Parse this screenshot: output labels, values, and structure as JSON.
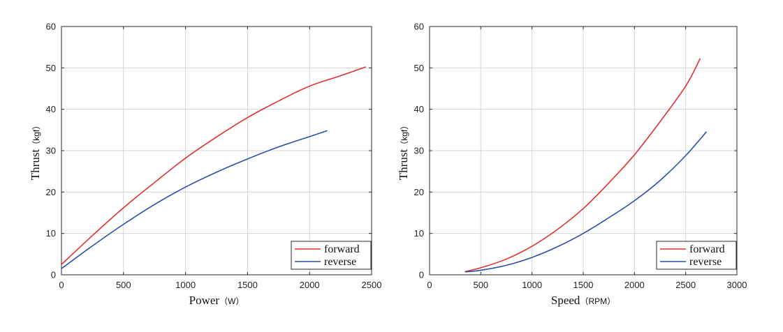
{
  "chart_data": [
    {
      "type": "line",
      "xlabel": "Power",
      "xunit": "（W）",
      "ylabel": "Thrust",
      "yunit": "（kgf）",
      "xlim": [
        0,
        2500
      ],
      "ylim": [
        0,
        60
      ],
      "xticks": [
        0,
        500,
        1000,
        1500,
        2000,
        2500
      ],
      "yticks": [
        0,
        10,
        20,
        30,
        40,
        50,
        60
      ],
      "grid": true,
      "legend": "bottom-right",
      "series": [
        {
          "name": "forward",
          "color": "#e03030",
          "x": [
            0,
            250,
            500,
            750,
            1000,
            1250,
            1500,
            1750,
            2000,
            2250,
            2450
          ],
          "y": [
            2.5,
            9.5,
            16.2,
            22.3,
            28.2,
            33.3,
            38.0,
            42.0,
            45.6,
            48.1,
            50.2
          ]
        },
        {
          "name": "reverse",
          "color": "#2b4ea8",
          "x": [
            0,
            250,
            500,
            750,
            1000,
            1250,
            1500,
            1750,
            2000,
            2140
          ],
          "y": [
            1.5,
            7.0,
            12.2,
            17.0,
            21.2,
            24.8,
            28.0,
            30.9,
            33.4,
            34.8
          ]
        }
      ]
    },
    {
      "type": "line",
      "xlabel": "Speed",
      "xunit": "（RPM）",
      "ylabel": "Thrust",
      "yunit": "（kgf）",
      "xlim": [
        0,
        3000
      ],
      "ylim": [
        0,
        60
      ],
      "xticks": [
        0,
        500,
        1000,
        1500,
        2000,
        2500,
        3000
      ],
      "yticks": [
        0,
        10,
        20,
        30,
        40,
        50,
        60
      ],
      "grid": true,
      "legend": "bottom-right",
      "series": [
        {
          "name": "forward",
          "color": "#e03030",
          "x": [
            350,
            500,
            750,
            1000,
            1250,
            1500,
            1750,
            2000,
            2250,
            2500,
            2640
          ],
          "y": [
            0.8,
            1.7,
            3.8,
            6.9,
            11.0,
            16.0,
            22.2,
            29.0,
            37.0,
            45.6,
            52.2
          ]
        },
        {
          "name": "reverse",
          "color": "#2b4ea8",
          "x": [
            350,
            500,
            750,
            1000,
            1250,
            1500,
            1750,
            2000,
            2250,
            2500,
            2700
          ],
          "y": [
            0.7,
            1.1,
            2.3,
            4.2,
            6.8,
            10.0,
            13.8,
            17.9,
            22.8,
            28.8,
            34.5
          ]
        }
      ]
    }
  ]
}
